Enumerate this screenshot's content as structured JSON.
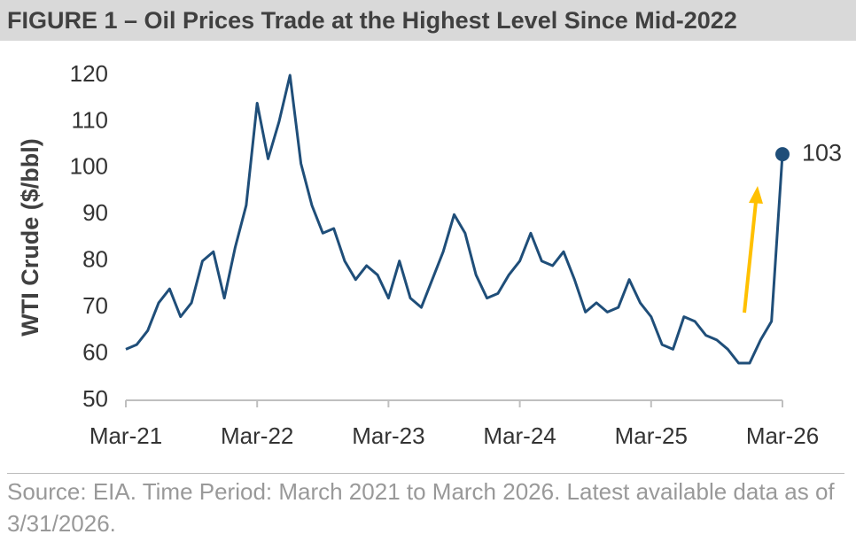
{
  "chart_data": {
    "type": "line",
    "title": "FIGURE 1 – Oil Prices Trade at the Highest Level Since Mid-2022",
    "y_label": "WTI Crude ($/bbl)",
    "source": "Source: EIA. Time Period: March 2021 to March 2026. Latest available data as of 3/31/2026.",
    "categories": [
      "Mar-21",
      null,
      null,
      null,
      null,
      null,
      null,
      null,
      null,
      null,
      null,
      null,
      "Mar-22",
      null,
      null,
      null,
      null,
      null,
      null,
      null,
      null,
      null,
      null,
      null,
      "Mar-23",
      null,
      null,
      null,
      null,
      null,
      null,
      null,
      null,
      null,
      null,
      null,
      "Mar-24",
      null,
      null,
      null,
      null,
      null,
      null,
      null,
      null,
      null,
      null,
      null,
      "Mar-25",
      null,
      null,
      null,
      null,
      null,
      null,
      null,
      null,
      null,
      null,
      null,
      "Mar-26"
    ],
    "series": [
      {
        "name": "WTI Crude",
        "color": "#1f4e79",
        "values": [
          61,
          62,
          65,
          71,
          74,
          68,
          71,
          80,
          82,
          72,
          83,
          92,
          114,
          102,
          110,
          120,
          101,
          92,
          86,
          87,
          80,
          76,
          79,
          77,
          72,
          80,
          72,
          70,
          76,
          82,
          90,
          86,
          77,
          72,
          73,
          77,
          80,
          86,
          80,
          79,
          82,
          76,
          69,
          71,
          69,
          70,
          76,
          71,
          68,
          62,
          61,
          68,
          67,
          64,
          63,
          61,
          58,
          58,
          63,
          67,
          103
        ],
        "end_label": "103"
      }
    ],
    "ylim": [
      50,
      120
    ],
    "yticks": [
      50,
      60,
      70,
      80,
      90,
      100,
      110,
      120
    ],
    "grid": false
  }
}
